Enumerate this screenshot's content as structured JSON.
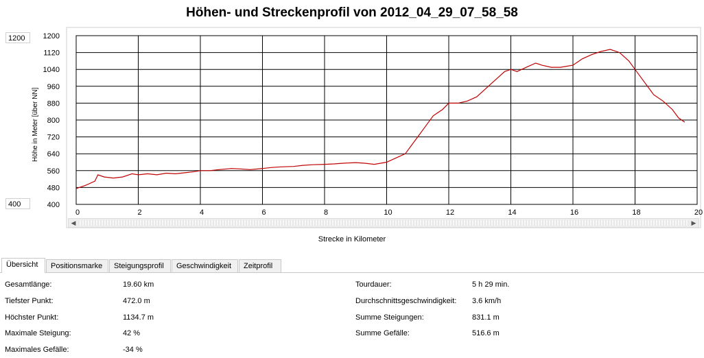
{
  "title": "Höhen- und Streckenprofil von 2012_04_29_07_58_58",
  "controls": {
    "ymax_value": "1200",
    "ymin_value": "400"
  },
  "chart_data": {
    "type": "line",
    "title": "Höhen- und Streckenprofil von 2012_04_29_07_58_58",
    "xlabel": "Strecke in Kilometer",
    "ylabel": "Höhe in Meter [über NN]",
    "xlim": [
      0,
      20
    ],
    "ylim": [
      400,
      1200
    ],
    "x_ticks": [
      "0",
      "2",
      "4",
      "6",
      "8",
      "10",
      "12",
      "14",
      "16",
      "18",
      "20"
    ],
    "y_ticks": [
      "400",
      "480",
      "560",
      "640",
      "720",
      "800",
      "880",
      "960",
      "1040",
      "1120",
      "1200"
    ],
    "grid": true,
    "line_color": "#c00000",
    "series": [
      {
        "x": [
          0,
          0.3,
          0.6,
          0.7,
          0.9,
          1.2,
          1.5,
          1.8,
          2.0,
          2.3,
          2.6,
          2.9,
          3.2,
          3.5,
          3.8,
          4.0,
          4.3,
          4.6,
          5.0,
          5.3,
          5.6,
          6.0,
          6.3,
          6.6,
          7.0,
          7.3,
          7.6,
          8.0,
          8.3,
          8.6,
          9.0,
          9.3,
          9.6,
          10.0,
          10.3,
          10.6,
          10.8,
          11.0,
          11.2,
          11.5,
          11.8,
          12.0,
          12.3,
          12.6,
          12.9,
          13.2,
          13.5,
          13.8,
          14.0,
          14.2,
          14.5,
          14.8,
          15.0,
          15.3,
          15.6,
          16.0,
          16.3,
          16.6,
          16.9,
          17.2,
          17.5,
          17.8,
          18.0,
          18.3,
          18.6,
          18.9,
          19.2,
          19.4,
          19.6
        ],
        "y": [
          475,
          490,
          510,
          540,
          530,
          525,
          530,
          545,
          540,
          545,
          540,
          548,
          545,
          550,
          555,
          560,
          560,
          565,
          570,
          568,
          565,
          570,
          575,
          578,
          580,
          585,
          588,
          590,
          592,
          595,
          598,
          595,
          590,
          600,
          620,
          640,
          680,
          720,
          760,
          820,
          850,
          880,
          880,
          890,
          910,
          950,
          990,
          1030,
          1040,
          1030,
          1050,
          1070,
          1060,
          1050,
          1050,
          1060,
          1090,
          1110,
          1125,
          1135,
          1120,
          1080,
          1040,
          980,
          920,
          890,
          850,
          810,
          790
        ]
      }
    ]
  },
  "tabs": [
    "Übersicht",
    "Positionsmarke",
    "Steigungsprofil",
    "Geschwindigkeit",
    "Zeitprofil"
  ],
  "stats_left": [
    {
      "label": "Gesamtlänge:",
      "value": "19.60 km"
    },
    {
      "label": "Tiefster Punkt:",
      "value": "472.0 m"
    },
    {
      "label": "Höchster Punkt:",
      "value": "1134.7 m"
    },
    {
      "label": "Maximale Steigung:",
      "value": "42 %"
    },
    {
      "label": "Maximales Gefälle:",
      "value": "-34 %"
    }
  ],
  "stats_right": [
    {
      "label": "Tourdauer:",
      "value": "5 h 29 min."
    },
    {
      "label": "Durchschnittsgeschwindigkeit:",
      "value": "3.6 km/h"
    },
    {
      "label": "Summe Steigungen:",
      "value": "831.1 m"
    },
    {
      "label": "Summe Gefälle:",
      "value": "516.6 m"
    }
  ]
}
